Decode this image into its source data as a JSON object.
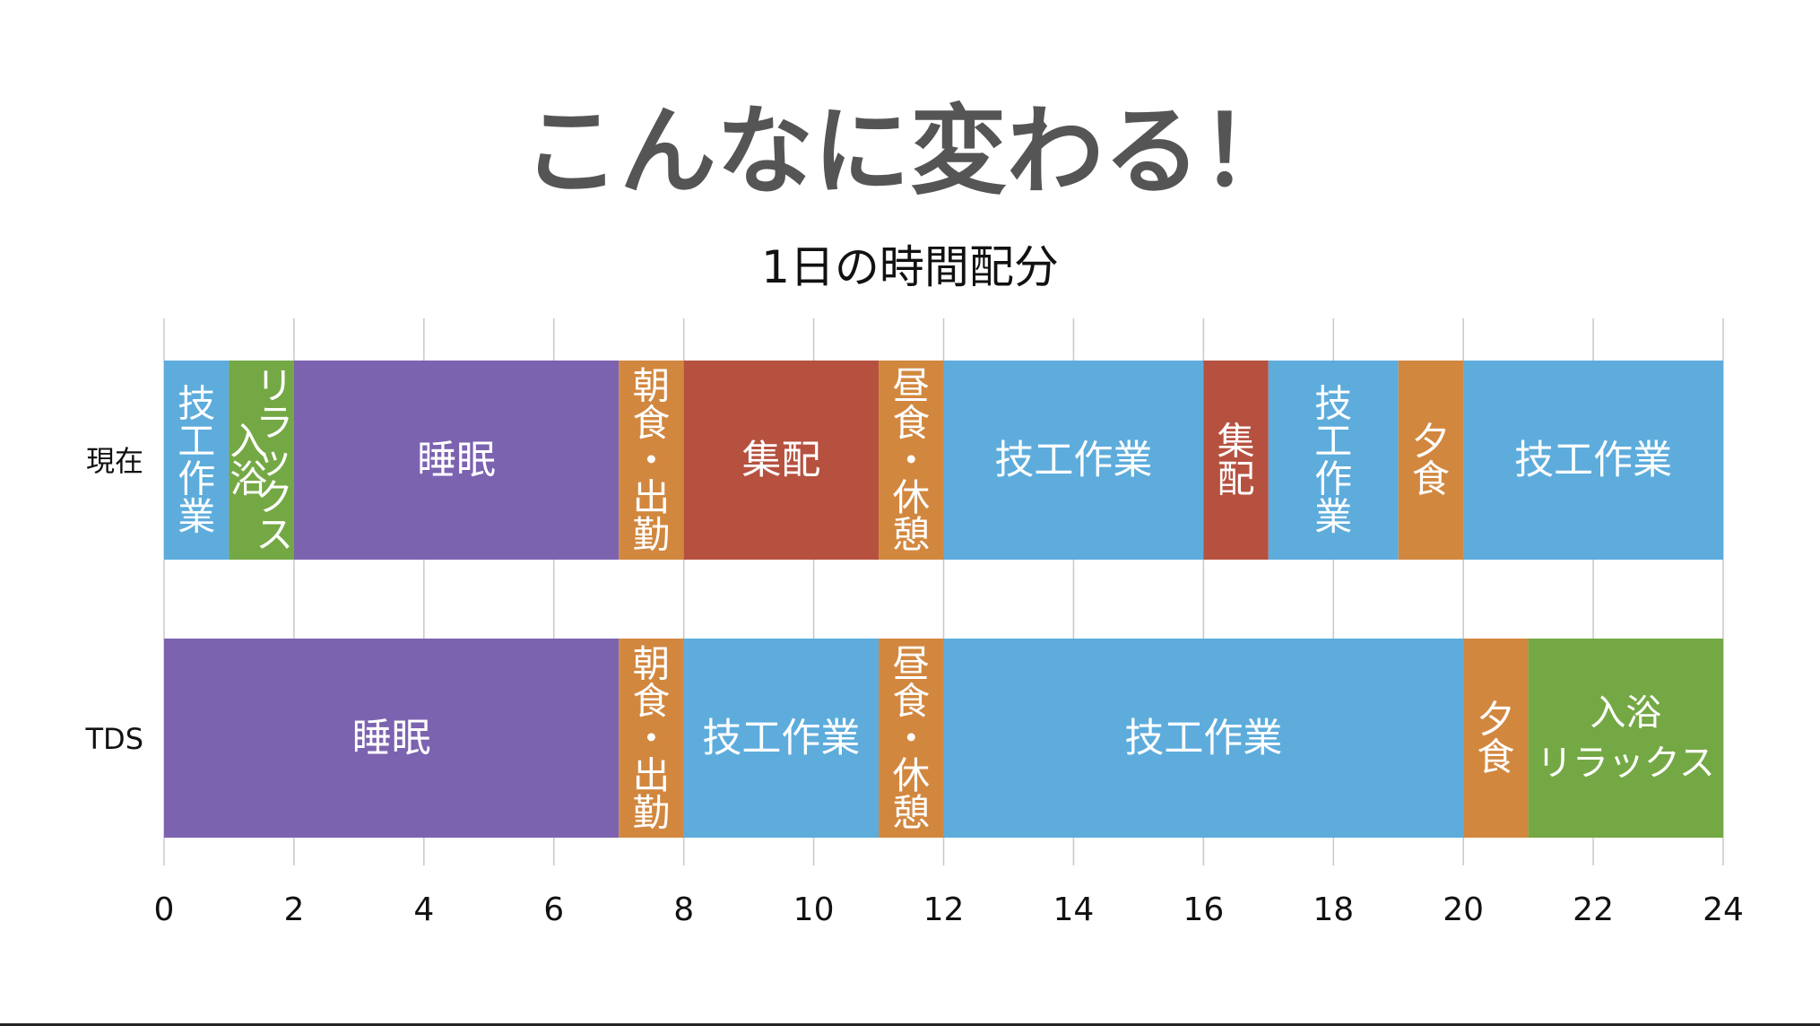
{
  "slide_title": "こんなに変わる！",
  "chart_data": {
    "type": "bar",
    "orientation": "horizontal",
    "stacked": true,
    "title": "1日の時間配分",
    "xlabel": "",
    "ylabel": "",
    "xlim": [
      0,
      24
    ],
    "xticks": [
      0,
      2,
      4,
      6,
      8,
      10,
      12,
      14,
      16,
      18,
      20,
      22,
      24
    ],
    "grid": true,
    "legend": "none",
    "categories": [
      "現在",
      "TDS"
    ],
    "colors": {
      "技工作業": "#5DACDC",
      "リラックス入浴": "#74A845",
      "睡眠": "#7B63B0",
      "食事": "#D2873F",
      "集配": "#B65140"
    },
    "rows": [
      {
        "label": "現在",
        "segments": [
          {
            "label": "技工作業",
            "start": 0,
            "end": 1,
            "kind": "技工作業",
            "lines": [
              "技",
              "工",
              "作",
              "業"
            ]
          },
          {
            "label": "リラックス入浴",
            "start": 1,
            "end": 2,
            "kind": "リラックス入浴",
            "lines": [
              "入",
              "浴"
            ],
            "lines2": [
              "リ",
              "ラ",
              "ッ",
              "ク",
              "ス"
            ]
          },
          {
            "label": "睡眠",
            "start": 2,
            "end": 7,
            "kind": "睡眠",
            "lines": [
              "睡眠"
            ]
          },
          {
            "label": "朝食・出勤",
            "start": 7,
            "end": 8,
            "kind": "食事",
            "lines": [
              "朝",
              "食",
              "・",
              "出",
              "勤"
            ]
          },
          {
            "label": "集配",
            "start": 8,
            "end": 11,
            "kind": "集配",
            "lines": [
              "集配"
            ]
          },
          {
            "label": "昼食・休憩",
            "start": 11,
            "end": 12,
            "kind": "食事",
            "lines": [
              "昼",
              "食",
              "・",
              "休",
              "憩"
            ]
          },
          {
            "label": "技工作業",
            "start": 12,
            "end": 16,
            "kind": "技工作業",
            "lines": [
              "技工作業"
            ]
          },
          {
            "label": "集配",
            "start": 16,
            "end": 17,
            "kind": "集配",
            "lines": [
              "集",
              "配"
            ]
          },
          {
            "label": "技工作業",
            "start": 17,
            "end": 19,
            "kind": "技工作業",
            "lines": [
              "技",
              "工",
              "作",
              "業"
            ]
          },
          {
            "label": "夕食",
            "start": 19,
            "end": 20,
            "kind": "食事",
            "lines": [
              "夕",
              "食"
            ]
          },
          {
            "label": "技工作業",
            "start": 20,
            "end": 24,
            "kind": "技工作業",
            "lines": [
              "技工作業"
            ]
          }
        ]
      },
      {
        "label": "TDS",
        "segments": [
          {
            "label": "睡眠",
            "start": 0,
            "end": 7,
            "kind": "睡眠",
            "lines": [
              "睡眠"
            ]
          },
          {
            "label": "朝食・出勤",
            "start": 7,
            "end": 8,
            "kind": "食事",
            "lines": [
              "朝",
              "食",
              "・",
              "出",
              "勤"
            ]
          },
          {
            "label": "技工作業",
            "start": 8,
            "end": 11,
            "kind": "技工作業",
            "lines": [
              "技工作業"
            ]
          },
          {
            "label": "昼食・休憩",
            "start": 11,
            "end": 12,
            "kind": "食事",
            "lines": [
              "昼",
              "食",
              "・",
              "休",
              "憩"
            ]
          },
          {
            "label": "技工作業",
            "start": 12,
            "end": 20,
            "kind": "技工作業",
            "lines": [
              "技工作業"
            ]
          },
          {
            "label": "夕食",
            "start": 20,
            "end": 21,
            "kind": "食事",
            "lines": [
              "夕",
              "食"
            ]
          },
          {
            "label": "入浴リラックス",
            "start": 21,
            "end": 24,
            "kind": "リラックス入浴",
            "lines": [
              "入浴",
              "リラックス"
            ]
          }
        ]
      }
    ]
  }
}
